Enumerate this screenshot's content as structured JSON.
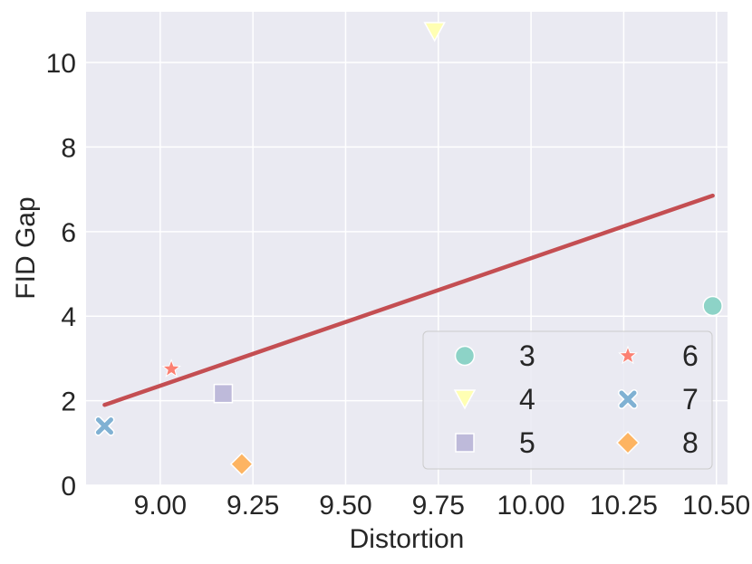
{
  "chart_data": {
    "type": "scatter",
    "xlabel": "Distortion",
    "ylabel": "FID Gap",
    "xlim": [
      8.8,
      10.53
    ],
    "ylim": [
      0,
      11.2
    ],
    "xticks": [
      9.0,
      9.25,
      9.5,
      9.75,
      10.0,
      10.25,
      10.5
    ],
    "xtick_labels": [
      "9.00",
      "9.25",
      "9.50",
      "9.75",
      "10.00",
      "10.25",
      "10.50"
    ],
    "yticks": [
      0,
      2,
      4,
      6,
      8,
      10
    ],
    "ytick_labels": [
      "0",
      "2",
      "4",
      "6",
      "8",
      "10"
    ],
    "grid": true,
    "legend_position": "lower-right",
    "legend_columns": 2,
    "series": [
      {
        "name": "3",
        "marker": "circle",
        "color": "#8dd3c7",
        "x": 10.49,
        "y": 4.24
      },
      {
        "name": "4",
        "marker": "triangle-down",
        "color": "#ffffb3",
        "x": 9.74,
        "y": 10.73
      },
      {
        "name": "5",
        "marker": "square",
        "color": "#bebada",
        "x": 9.17,
        "y": 2.17
      },
      {
        "name": "6",
        "marker": "star",
        "color": "#fb8072",
        "x": 9.03,
        "y": 2.75
      },
      {
        "name": "7",
        "marker": "x",
        "color": "#80b1d3",
        "x": 8.85,
        "y": 1.4
      },
      {
        "name": "8",
        "marker": "diamond",
        "color": "#fdb462",
        "x": 9.22,
        "y": 0.5
      }
    ],
    "fit_line": {
      "color": "#c44e52",
      "points": [
        [
          8.85,
          1.9
        ],
        [
          10.49,
          6.85
        ]
      ]
    }
  }
}
